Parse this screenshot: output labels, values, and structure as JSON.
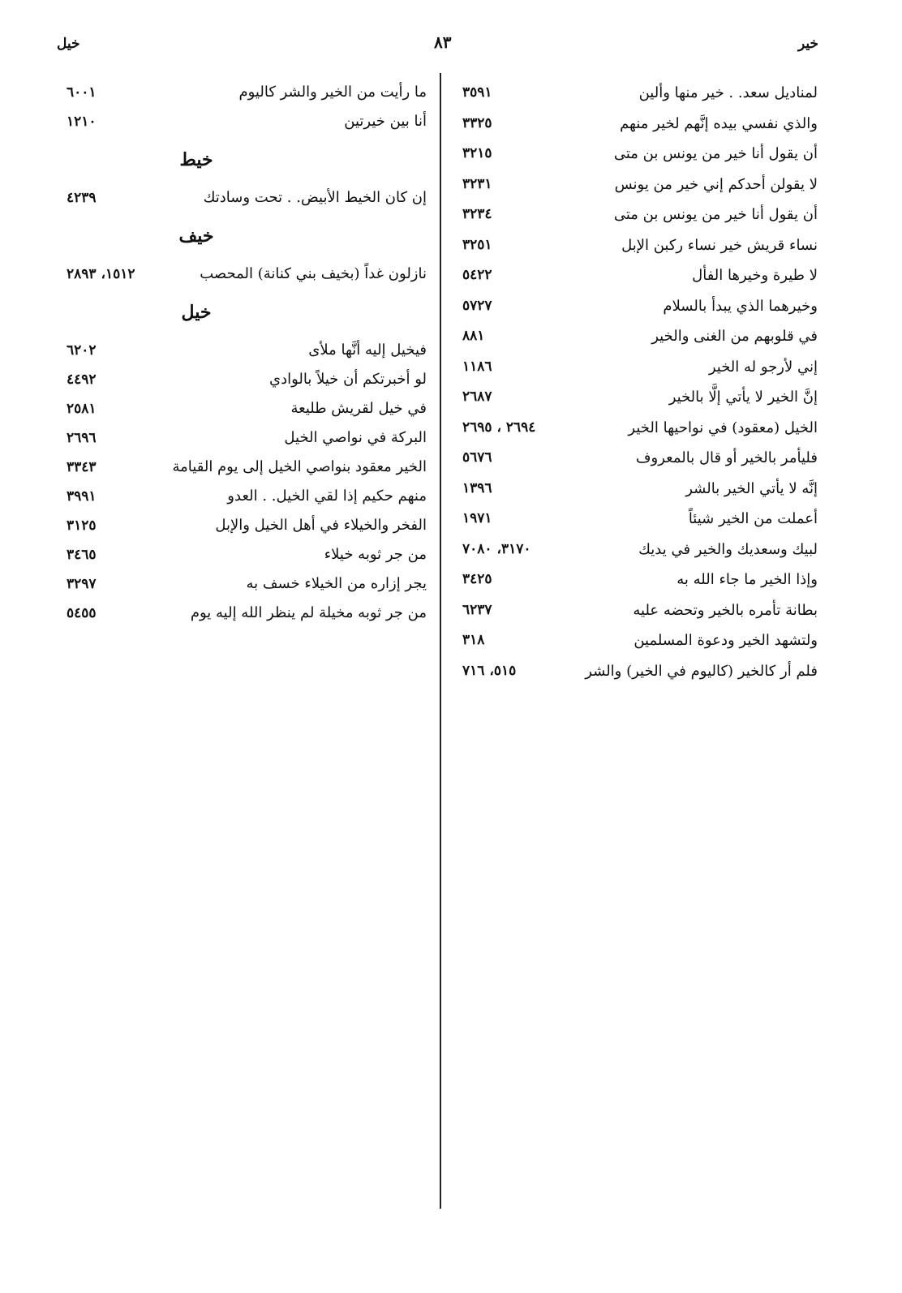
{
  "header": {
    "right_word": "خير",
    "page_number": "٨٣",
    "left_word": "خيل"
  },
  "right_column": [
    {
      "text": "لمناديل سعد. . خير منها وألين",
      "refs": "٣٥٩١"
    },
    {
      "text": "والذي نفسي بيده إنَّهم لخير منهم",
      "refs": "٣٣٢٥"
    },
    {
      "text": "أن يقول أنا خير من يونس بن متى",
      "refs": "٣٢١٥"
    },
    {
      "text": "لا يقولن أحدكم إني خير من يونس",
      "refs": "٣٢٣١"
    },
    {
      "text": "أن يقول أنا خير من يونس بن متى",
      "refs": "٣٢٣٤"
    },
    {
      "text": "نساء قريش خير نساء ركبن الإبل",
      "refs": "٣٢٥١"
    },
    {
      "text": "لا طيرة وخيرها الفأل",
      "refs": "٥٤٢٢"
    },
    {
      "text": "وخيرهما الذي يبدأ بالسلام",
      "refs": "٥٧٢٧"
    },
    {
      "text": "في قلوبهم من الغنى والخير",
      "refs": "٨٨١"
    },
    {
      "text": "إني لأرجو له الخير",
      "refs": "١١٨٦"
    },
    {
      "text": "إنَّ الخير لا يأتي إلَّا بالخير",
      "refs": "٢٦٨٧"
    },
    {
      "text": "الخيل (معقود) في نواحيها الخير",
      "refs": "٢٦٩٤ ، ٢٦٩٥"
    },
    {
      "text": "فليأمر بالخير أو قال بالمعروف",
      "refs": "٥٦٧٦"
    },
    {
      "text": "إنَّه لا يأتي الخير بالشر",
      "refs": "١٣٩٦"
    },
    {
      "text": "أعملت من الخير شيئاً",
      "refs": "١٩٧١"
    },
    {
      "text": "لبيك وسعديك والخير في يديك",
      "refs": "٣١٧٠، ٧٠٨٠"
    },
    {
      "text": "وإذا الخير ما جاء الله به",
      "refs": "٣٤٢٥"
    },
    {
      "text": "بطانة تأمره بالخير وتحضه عليه",
      "refs": "٦٢٣٧"
    },
    {
      "text": "ولتشهد الخير ودعوة المسلمين",
      "refs": "٣١٨"
    },
    {
      "text": "فلم أر كالخير (كاليوم في الخير) والشر",
      "refs": "٥١٥، ٧١٦"
    }
  ],
  "left_column": {
    "continued": [
      {
        "text": "ما رأيت من الخير والشر كاليوم",
        "refs": "٦٠٠١"
      },
      {
        "text": "أنا بين خيرتين",
        "refs": "١٢١٠"
      }
    ],
    "sections": [
      {
        "heading": "خيط",
        "entries": [
          {
            "text": "إن كان الخيط الأبيض. . تحت وسادتك",
            "refs": "٤٢٣٩"
          }
        ]
      },
      {
        "heading": "خيف",
        "entries": [
          {
            "text": "نازلون غداً (بخيف بني كنانة) المحصب",
            "refs": "١٥١٢، ٢٨٩٣"
          }
        ]
      },
      {
        "heading": "خيل",
        "entries": [
          {
            "text": "فيخيل إليه أنَّها ملأى",
            "refs": "٦٢٠٢"
          },
          {
            "text": "لو أخبرتكم أن خيلاً بالوادي",
            "refs": "٤٤٩٢"
          },
          {
            "text": "في خيل لقريش طليعة",
            "refs": "٢٥٨١"
          },
          {
            "text": "البركة في نواصي الخيل",
            "refs": "٢٦٩٦"
          },
          {
            "text": "الخير معقود بنواصي الخيل إلى يوم القيامة",
            "refs": "٣٣٤٣"
          },
          {
            "text": "منهم حكيم إذا لقي الخيل. . العدو",
            "refs": "٣٩٩١"
          },
          {
            "text": "الفخر والخيلاء في أهل الخيل والإبل",
            "refs": "٣١٢٥"
          },
          {
            "text": "من جر ثوبه خيلاء",
            "refs": "٣٤٦٥"
          },
          {
            "text": "يجر إزاره من الخيلاء خسف به",
            "refs": "٣٢٩٧"
          },
          {
            "text": "من جر ثوبه مخيلة لم ينظر الله إليه يوم",
            "refs": "٥٤٥٥"
          }
        ]
      }
    ]
  }
}
